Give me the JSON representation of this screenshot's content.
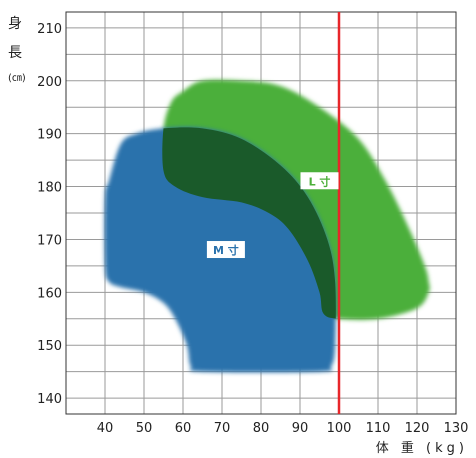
{
  "chart_data": {
    "type": "area",
    "x_ticks": [
      40,
      50,
      60,
      70,
      80,
      90,
      100,
      110,
      120,
      130
    ],
    "y_ticks": [
      140,
      150,
      160,
      170,
      180,
      190,
      200,
      210
    ],
    "xlim": [
      30,
      130
    ],
    "ylim": [
      137,
      213
    ],
    "ylabel_chars": [
      "身",
      "長"
    ],
    "ylabel_unit": "(㎝)",
    "xlabel": "体 重 (kg)",
    "grid": true,
    "vline": {
      "x": 100,
      "color": "#e8262a"
    },
    "regions": [
      {
        "name": "L 寸",
        "color": "#4caf3a",
        "overlap_color": "#1a5a2a",
        "label_at": [
          95,
          181
        ],
        "boundary": [
          [
            55,
            191
          ],
          [
            57,
            196
          ],
          [
            60,
            198
          ],
          [
            65,
            200
          ],
          [
            75,
            200
          ],
          [
            85,
            199
          ],
          [
            95,
            195
          ],
          [
            105,
            189
          ],
          [
            112,
            181
          ],
          [
            118,
            172
          ],
          [
            122,
            165
          ],
          [
            123,
            162
          ],
          [
            123,
            160
          ],
          [
            120,
            157
          ],
          [
            110,
            155
          ],
          [
            100,
            155
          ],
          [
            96,
            156
          ],
          [
            95,
            160
          ],
          [
            92,
            166
          ],
          [
            87,
            172
          ],
          [
            82,
            175
          ],
          [
            75,
            177
          ],
          [
            65,
            178
          ],
          [
            58,
            180
          ],
          [
            55,
            183
          ]
        ]
      },
      {
        "name": "M 寸",
        "color": "#2a72ac",
        "label_at": [
          71,
          168
        ],
        "boundary": [
          [
            41,
            181
          ],
          [
            44,
            188
          ],
          [
            48,
            190
          ],
          [
            55,
            191
          ],
          [
            65,
            191
          ],
          [
            75,
            189
          ],
          [
            85,
            184
          ],
          [
            92,
            178
          ],
          [
            97,
            170
          ],
          [
            99,
            162
          ],
          [
            99,
            150
          ],
          [
            98,
            146
          ],
          [
            95,
            145
          ],
          [
            65,
            145
          ],
          [
            62,
            146
          ],
          [
            61,
            150
          ],
          [
            58,
            155
          ],
          [
            55,
            158
          ],
          [
            50,
            160
          ],
          [
            44,
            161
          ],
          [
            41,
            162
          ],
          [
            40,
            165
          ],
          [
            40,
            178
          ]
        ]
      }
    ]
  }
}
